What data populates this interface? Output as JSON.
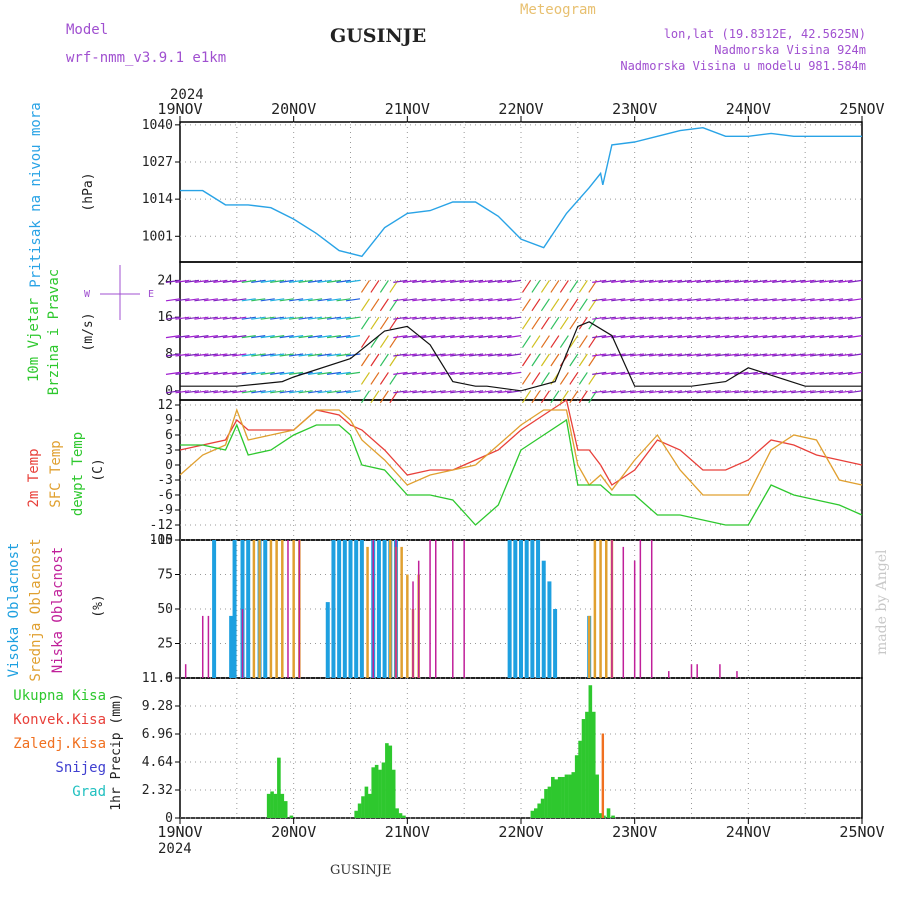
{
  "header": {
    "model_label": "Model",
    "model_name": "wrf-nmm_v3.9.1 e1km",
    "station": "GUSINJE",
    "meteogram_label": "Meteogram",
    "lonlat": "lon,lat (19.8312E, 42.5625N)",
    "elevation": "Nadmorska Visina 924m",
    "model_elevation": "Nadmorska Visina u modelu 981.584m",
    "watermark": "made by Angel",
    "footer_station": "GUSINJE"
  },
  "colors": {
    "pressure": "#29a3e6",
    "temp2m": "#e8403a",
    "sfc_temp": "#e0a030",
    "dewpoint": "#2ec82e",
    "high_cloud": "#1ea0e0",
    "mid_cloud": "#e0a030",
    "low_cloud": "#c0209a",
    "precip_total": "#2ec82e",
    "precip_freezing": "#f07020",
    "header_purple": "#a050d0",
    "header_orange": "#e8c070"
  },
  "chart_data": [
    {
      "type": "line",
      "panel": "pressure",
      "ylabel_rotated": "Pritisak na nivou mora",
      "unit": "(hPa)",
      "yticks": [
        1001,
        1014,
        1027,
        1040
      ],
      "ylim": [
        992,
        1041
      ],
      "x": [
        0,
        0.2,
        0.4,
        0.6,
        0.8,
        1.0,
        1.2,
        1.4,
        1.6,
        1.8,
        2.0,
        2.2,
        2.4,
        2.6,
        2.8,
        3.0,
        3.2,
        3.4,
        3.6,
        3.7,
        3.72,
        3.8,
        4.0,
        4.2,
        4.4,
        4.6,
        4.8,
        5.0,
        5.2,
        5.4,
        5.6,
        5.8,
        6.0
      ],
      "values": [
        1017,
        1017,
        1012,
        1012,
        1011,
        1007,
        1002,
        996,
        994,
        1004,
        1009,
        1010,
        1013,
        1013,
        1008,
        1000,
        997,
        1009,
        1018,
        1023,
        1019,
        1033,
        1034,
        1036,
        1038,
        1039,
        1036,
        1036,
        1037,
        1036,
        1036,
        1036,
        1036
      ]
    },
    {
      "type": "line",
      "panel": "wind",
      "ylabel_rotated": "10m Vjetar Brzina i Pravac",
      "unit": "(m/s)",
      "compass": "N S E W",
      "yticks": [
        0,
        8,
        16,
        24
      ],
      "ylim": [
        -2,
        28
      ],
      "x": [
        0,
        0.5,
        0.9,
        1.0,
        1.5,
        1.8,
        2.0,
        2.2,
        2.4,
        2.6,
        2.7,
        3.0,
        3.3,
        3.5,
        3.6,
        3.8,
        4.0,
        4.5,
        4.8,
        5.0,
        5.5,
        6.0
      ],
      "values": [
        1,
        1,
        2,
        3,
        7,
        13,
        14,
        10,
        2,
        1,
        1,
        0,
        2,
        14,
        15,
        12,
        1,
        1,
        2,
        5,
        1,
        1
      ],
      "series": [
        {
          "name": "wind speed",
          "values": [
            1,
            1,
            2,
            3,
            7,
            13,
            14,
            10,
            2,
            1,
            1,
            0,
            2,
            14,
            15,
            12,
            1,
            1,
            2,
            5,
            1,
            1
          ]
        }
      ]
    },
    {
      "type": "line",
      "panel": "temperature",
      "ylabel_lines": [
        "2m Temp",
        "SFC Temp",
        "dewpt Temp"
      ],
      "unit": "(C)",
      "yticks": [
        -15,
        -12,
        -9,
        -6,
        -3,
        0,
        3,
        6,
        9,
        12
      ],
      "ylim": [
        -15,
        13
      ],
      "x": [
        0,
        0.2,
        0.4,
        0.5,
        0.6,
        0.8,
        1.0,
        1.2,
        1.4,
        1.5,
        1.6,
        1.8,
        2.0,
        2.2,
        2.4,
        2.6,
        2.8,
        3.0,
        3.2,
        3.4,
        3.5,
        3.6,
        3.7,
        3.8,
        4.0,
        4.2,
        4.4,
        4.6,
        4.8,
        5.0,
        5.2,
        5.4,
        5.6,
        5.8,
        6.0
      ],
      "series": [
        {
          "name": "2m Temp",
          "values": [
            3,
            4,
            5,
            9,
            7,
            7,
            7,
            11,
            10,
            8,
            7,
            3,
            -2,
            -1,
            -1,
            1,
            3,
            7,
            10,
            13,
            3,
            3,
            0,
            -4,
            -1,
            5,
            3,
            -1,
            -1,
            1,
            5,
            4,
            2,
            1,
            0
          ]
        },
        {
          "name": "SFC Temp",
          "values": [
            -2,
            2,
            4,
            11,
            5,
            6,
            7,
            11,
            11,
            9,
            5,
            1,
            -4,
            -2,
            -1,
            0,
            4,
            8,
            11,
            11,
            0,
            -4,
            -2,
            -5,
            1,
            6,
            -1,
            -6,
            -6,
            -6,
            3,
            6,
            5,
            -3,
            -4
          ]
        },
        {
          "name": "dewpt Temp",
          "values": [
            4,
            4,
            3,
            8,
            2,
            3,
            6,
            8,
            8,
            6,
            0,
            -1,
            -6,
            -6,
            -7,
            -12,
            -8,
            3,
            6,
            9,
            -4,
            -4,
            -4,
            -6,
            -6,
            -10,
            -10,
            -11,
            -12,
            -12,
            -4,
            -6,
            -7,
            -8,
            -10
          ]
        }
      ]
    },
    {
      "type": "bar",
      "panel": "cloud_cover",
      "ylabel_lines": [
        "Visoka Oblacnost",
        "Srednja Oblacnost",
        "Niska Oblacnost"
      ],
      "unit": "(%)",
      "yticks": [
        0,
        25,
        50,
        75,
        100
      ],
      "ylim": [
        0,
        100
      ],
      "series": [
        {
          "name": "Visoka Oblacnost",
          "x": [
            0.3,
            0.45,
            0.48,
            0.55,
            0.6,
            0.7,
            0.75,
            1.3,
            1.35,
            1.4,
            1.45,
            1.5,
            1.55,
            1.6,
            1.7,
            1.75,
            1.8,
            1.85,
            1.9,
            2.9,
            2.95,
            3.0,
            3.05,
            3.1,
            3.15,
            3.2,
            3.25,
            3.3,
            3.6
          ],
          "values": [
            100,
            45,
            100,
            100,
            100,
            100,
            100,
            55,
            100,
            100,
            100,
            100,
            100,
            100,
            100,
            100,
            100,
            100,
            100,
            100,
            100,
            100,
            100,
            100,
            100,
            85,
            70,
            50,
            45
          ]
        },
        {
          "name": "Srednja Oblacnost",
          "x": [
            0.65,
            0.7,
            0.8,
            0.85,
            0.9,
            1.0,
            1.05,
            1.65,
            1.85,
            1.9,
            1.95,
            2.0,
            2.05,
            2.1,
            3.6,
            3.65,
            3.7,
            3.75,
            3.8
          ],
          "values": [
            100,
            100,
            100,
            100,
            100,
            100,
            100,
            95,
            100,
            95,
            95,
            75,
            50,
            75,
            45,
            100,
            100,
            100,
            100
          ]
        },
        {
          "name": "Niska Oblacnost",
          "x": [
            0.05,
            0.2,
            0.25,
            0.55,
            0.95,
            1.05,
            1.7,
            1.9,
            2.05,
            2.1,
            2.2,
            2.25,
            2.4,
            2.5,
            3.8,
            3.9,
            4.0,
            4.05,
            4.15,
            4.3,
            4.5,
            4.55,
            4.75,
            4.9
          ],
          "values": [
            10,
            45,
            45,
            50,
            100,
            100,
            100,
            100,
            70,
            85,
            100,
            100,
            100,
            100,
            100,
            95,
            85,
            100,
            100,
            5,
            10,
            10,
            10,
            5
          ]
        }
      ]
    },
    {
      "type": "bar",
      "panel": "precipitation",
      "ylabel_rotated": "1hr Precip (mm)",
      "legend": [
        "Ukupna Kisa",
        "Konvek.Kisa",
        "Zaledj.Kisa",
        "Snijeg",
        "Grad"
      ],
      "yticks": [
        0,
        2.32,
        4.64,
        6.96,
        9.28,
        11.6
      ],
      "ylim": [
        0,
        11.6
      ],
      "x": [
        0.78,
        0.81,
        0.84,
        0.87,
        0.9,
        0.93,
        0.98,
        1.55,
        1.58,
        1.61,
        1.64,
        1.67,
        1.7,
        1.73,
        1.76,
        1.79,
        1.82,
        1.85,
        1.88,
        1.91,
        1.94,
        1.97,
        3.1,
        3.13,
        3.16,
        3.19,
        3.22,
        3.25,
        3.28,
        3.31,
        3.34,
        3.37,
        3.4,
        3.43,
        3.46,
        3.49,
        3.52,
        3.55,
        3.58,
        3.61,
        3.64,
        3.67,
        3.7,
        3.73,
        3.77,
        3.81
      ],
      "values": [
        2.0,
        2.2,
        2.0,
        5.0,
        2.0,
        1.4,
        0.2,
        0.6,
        1.2,
        1.8,
        2.6,
        2.0,
        4.2,
        4.4,
        4.0,
        4.6,
        6.2,
        6.0,
        4.0,
        0.8,
        0.4,
        0.2,
        0.6,
        0.8,
        1.2,
        1.6,
        2.4,
        2.6,
        3.4,
        3.2,
        3.4,
        3.4,
        3.6,
        3.6,
        3.8,
        5.2,
        6.4,
        8.2,
        8.8,
        11.0,
        8.8,
        3.6,
        0.4,
        0.2,
        0.8,
        0.2
      ],
      "freezing_x": [
        3.72
      ],
      "freezing_values": [
        7.0
      ]
    }
  ],
  "time_axis": {
    "year": "2024",
    "labels": [
      "19NOV",
      "20NOV",
      "21NOV",
      "22NOV",
      "23NOV",
      "24NOV",
      "25NOV"
    ]
  }
}
